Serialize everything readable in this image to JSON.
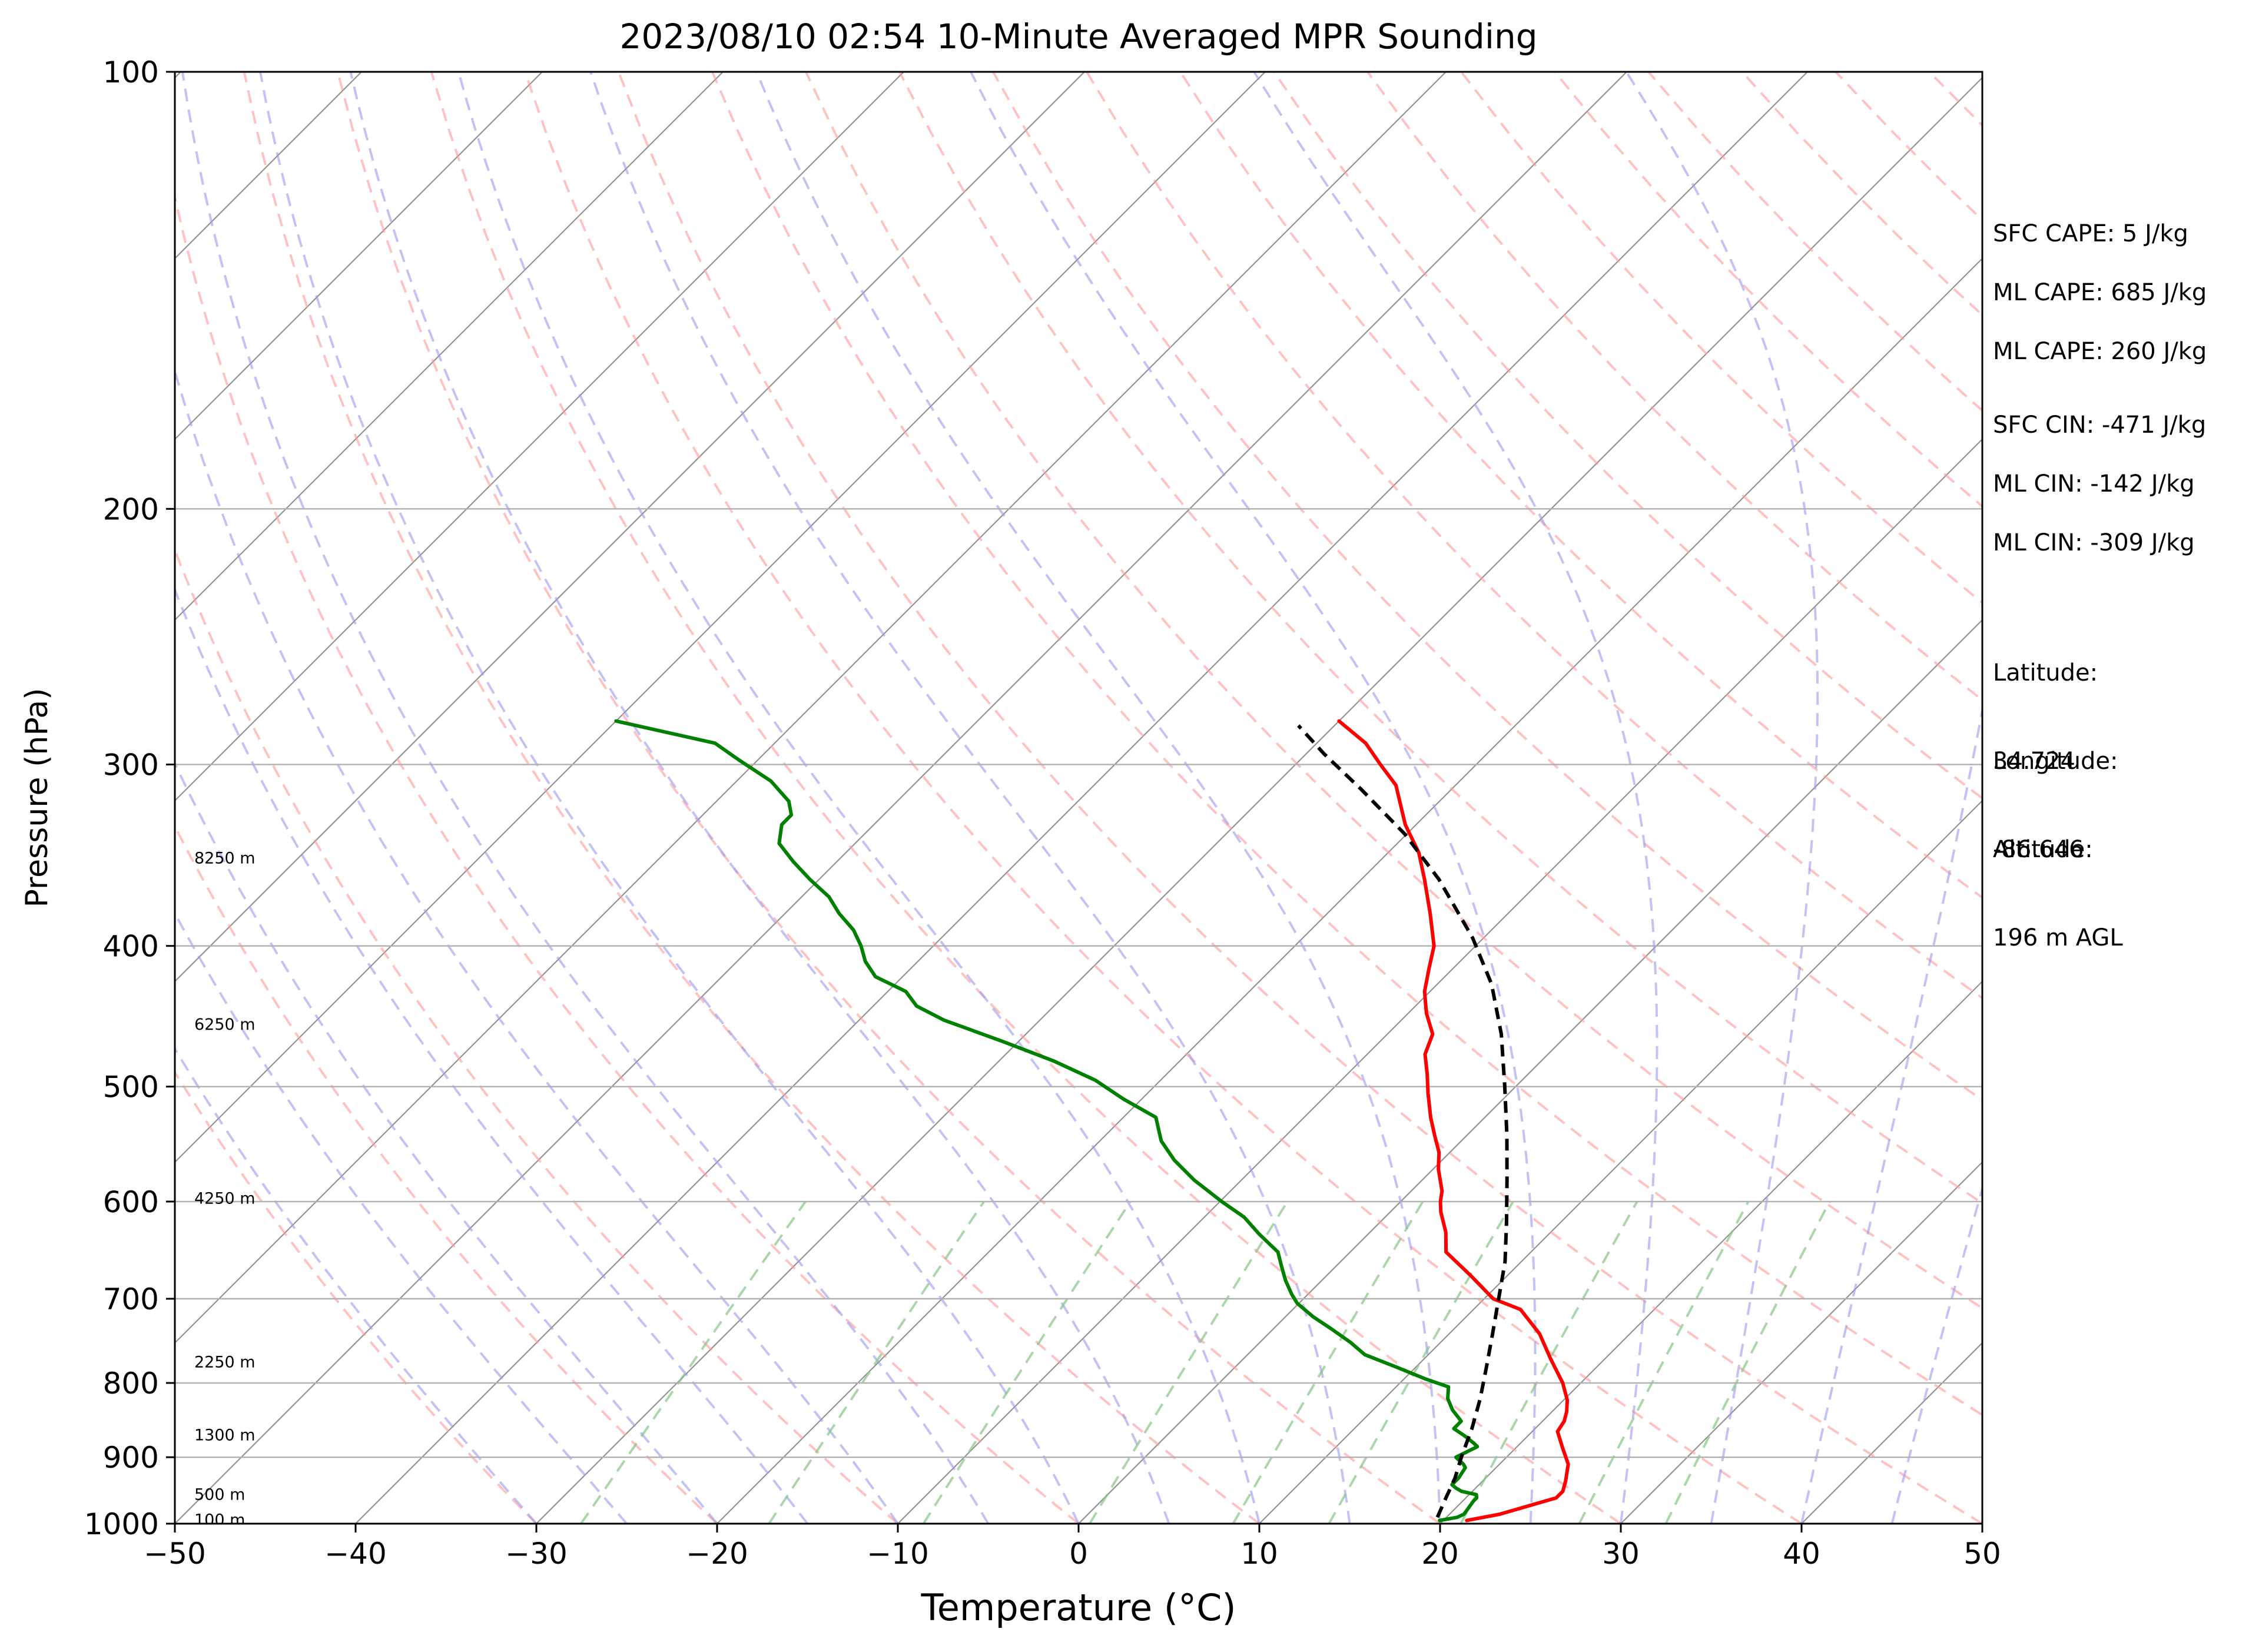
{
  "chart_data": {
    "type": "line",
    "title": "2023/08/10 02:54 10-Minute Averaged MPR Sounding",
    "xlabel": "Temperature (°C)",
    "ylabel": "Pressure (hPa)",
    "xlim": [
      -50,
      50
    ],
    "ylim": [
      1000,
      100
    ],
    "y_scale": "log",
    "skew_diagram": "skew-T log-p",
    "grid": true,
    "x_ticks": [
      "−50",
      "−40",
      "−30",
      "−20",
      "−10",
      "0",
      "10",
      "20",
      "30",
      "40",
      "50"
    ],
    "x_tick_values": [
      -50,
      -40,
      -30,
      -20,
      -10,
      0,
      10,
      20,
      30,
      40,
      50
    ],
    "y_ticks": [
      "1000",
      "900",
      "800",
      "700",
      "600",
      "500",
      "400",
      "300",
      "200",
      "100"
    ],
    "y_tick_values": [
      1000,
      900,
      800,
      700,
      600,
      500,
      400,
      300,
      200,
      100
    ],
    "height_labels": [
      {
        "text": "100 m",
        "p": 994
      },
      {
        "text": "500 m",
        "p": 955
      },
      {
        "text": "1300 m",
        "p": 869
      },
      {
        "text": "2250 m",
        "p": 774
      },
      {
        "text": "4250 m",
        "p": 597
      },
      {
        "text": "6250 m",
        "p": 453
      },
      {
        "text": "8250 m",
        "p": 348
      }
    ],
    "series": [
      {
        "role": "temperature",
        "color": "#ff0000",
        "points": [
          [
            21.3,
            995
          ],
          [
            22.8,
            985
          ],
          [
            25.0,
            960
          ],
          [
            25.0,
            950
          ],
          [
            24.6,
            935
          ],
          [
            23.8,
            910
          ],
          [
            22.6,
            887
          ],
          [
            21.4,
            864
          ],
          [
            21.2,
            850
          ],
          [
            20.8,
            837
          ],
          [
            20.2,
            822
          ],
          [
            19.0,
            800
          ],
          [
            17.0,
            770
          ],
          [
            15.0,
            740
          ],
          [
            12.6,
            712
          ],
          [
            10.5,
            700
          ],
          [
            8.0,
            675
          ],
          [
            5.3,
            650
          ],
          [
            4.2,
            630
          ],
          [
            2.8,
            610
          ],
          [
            2.2,
            600
          ],
          [
            1.7,
            590
          ],
          [
            0.3,
            570
          ],
          [
            -0.6,
            555
          ],
          [
            -1.8,
            540
          ],
          [
            -3.0,
            525
          ],
          [
            -4.5,
            505
          ],
          [
            -5.6,
            490
          ],
          [
            -6.8,
            475
          ],
          [
            -7.5,
            460
          ],
          [
            -9.0,
            445
          ],
          [
            -10.3,
            430
          ],
          [
            -11.3,
            415
          ],
          [
            -12.3,
            400
          ],
          [
            -14.3,
            380
          ],
          [
            -16.5,
            360
          ],
          [
            -18.3,
            345
          ],
          [
            -20.6,
            330
          ],
          [
            -23.3,
            310
          ],
          [
            -25.3,
            300
          ],
          [
            -27.3,
            290
          ],
          [
            -30.0,
            280
          ]
        ]
      },
      {
        "role": "dewpoint",
        "color": "#008000",
        "points": [
          [
            19.8,
            995
          ],
          [
            20.6,
            990
          ],
          [
            20.8,
            985
          ],
          [
            20.7,
            975
          ],
          [
            20.6,
            965
          ],
          [
            20.6,
            960
          ],
          [
            20.4,
            955
          ],
          [
            19.4,
            950
          ],
          [
            18.9,
            945
          ],
          [
            18.5,
            940
          ],
          [
            18.5,
            930
          ],
          [
            18.3,
            915
          ],
          [
            18.0,
            910
          ],
          [
            17.2,
            900
          ],
          [
            17.8,
            885
          ],
          [
            17.4,
            880
          ],
          [
            16.5,
            870
          ],
          [
            15.5,
            860
          ],
          [
            15.5,
            850
          ],
          [
            14.4,
            835
          ],
          [
            13.5,
            820
          ],
          [
            12.9,
            805
          ],
          [
            11.2,
            795
          ],
          [
            8.9,
            780
          ],
          [
            6.5,
            765
          ],
          [
            5.0,
            750
          ],
          [
            3.3,
            735
          ],
          [
            1.5,
            720
          ],
          [
            -0.1,
            705
          ],
          [
            -0.9,
            695
          ],
          [
            -2.0,
            680
          ],
          [
            -3.0,
            665
          ],
          [
            -4.0,
            650
          ],
          [
            -6.0,
            632
          ],
          [
            -7.8,
            615
          ],
          [
            -9.9,
            600
          ],
          [
            -12.6,
            580
          ],
          [
            -14.8,
            562
          ],
          [
            -16.6,
            545
          ],
          [
            -18.2,
            525
          ],
          [
            -21.0,
            510
          ],
          [
            -23.6,
            495
          ],
          [
            -27.0,
            480
          ],
          [
            -31.0,
            465
          ],
          [
            -35.3,
            450
          ],
          [
            -37.6,
            440
          ],
          [
            -39.0,
            430
          ],
          [
            -41.5,
            420
          ],
          [
            -42.9,
            410
          ],
          [
            -44.0,
            400
          ],
          [
            -45.3,
            390
          ],
          [
            -47.0,
            380
          ],
          [
            -48.5,
            370
          ],
          [
            -50.5,
            360
          ],
          [
            -52.4,
            350
          ],
          [
            -54.2,
            340
          ],
          [
            -55.1,
            330
          ],
          [
            -55.1,
            325
          ],
          [
            -56.0,
            318
          ],
          [
            -58.1,
            308
          ],
          [
            -61.0,
            298
          ],
          [
            -63.3,
            290
          ],
          [
            -70.0,
            280
          ]
        ]
      },
      {
        "role": "parcel",
        "color": "#000000",
        "dashed": true,
        "points": [
          [
            19.5,
            990
          ],
          [
            18.9,
            960
          ],
          [
            18.3,
            930
          ],
          [
            17.5,
            900
          ],
          [
            16.5,
            860
          ],
          [
            15.3,
            820
          ],
          [
            13.9,
            780
          ],
          [
            12.4,
            740
          ],
          [
            10.8,
            700
          ],
          [
            9.1,
            660
          ],
          [
            7.0,
            620
          ],
          [
            4.7,
            580
          ],
          [
            2.2,
            540
          ],
          [
            -0.6,
            500
          ],
          [
            -3.7,
            460
          ],
          [
            -7.0,
            425
          ],
          [
            -10.6,
            395
          ],
          [
            -15.7,
            360
          ],
          [
            -20.1,
            335
          ],
          [
            -25.0,
            312
          ],
          [
            -29.0,
            295
          ],
          [
            -32.0,
            282
          ]
        ]
      }
    ]
  },
  "info": {
    "sfc_cape": "SFC CAPE: 5 J/kg",
    "ml_cape_1": "ML CAPE: 685 J/kg",
    "ml_cape_2": "ML CAPE: 260 J/kg",
    "sfc_cin": "SFC CIN: -471 J/kg",
    "ml_cin_1": "ML CIN: -142 J/kg",
    "ml_cin_2": "ML CIN: -309 J/kg",
    "latitude_label": "Latitude:",
    "latitude_value": "34.724",
    "longitude_label": "Longitude:",
    "longitude_value": "-86.646",
    "altitude_label": "Altitude:",
    "altitude_value": "196 m AGL"
  },
  "colors": {
    "temperature": "#ff0000",
    "dewpoint": "#008000",
    "parcel": "#000000",
    "dry_adiabat": "#ff9999",
    "moist_adiabat": "#9999ee",
    "mixing_ratio": "#88c488",
    "isotherm": "#808080"
  }
}
